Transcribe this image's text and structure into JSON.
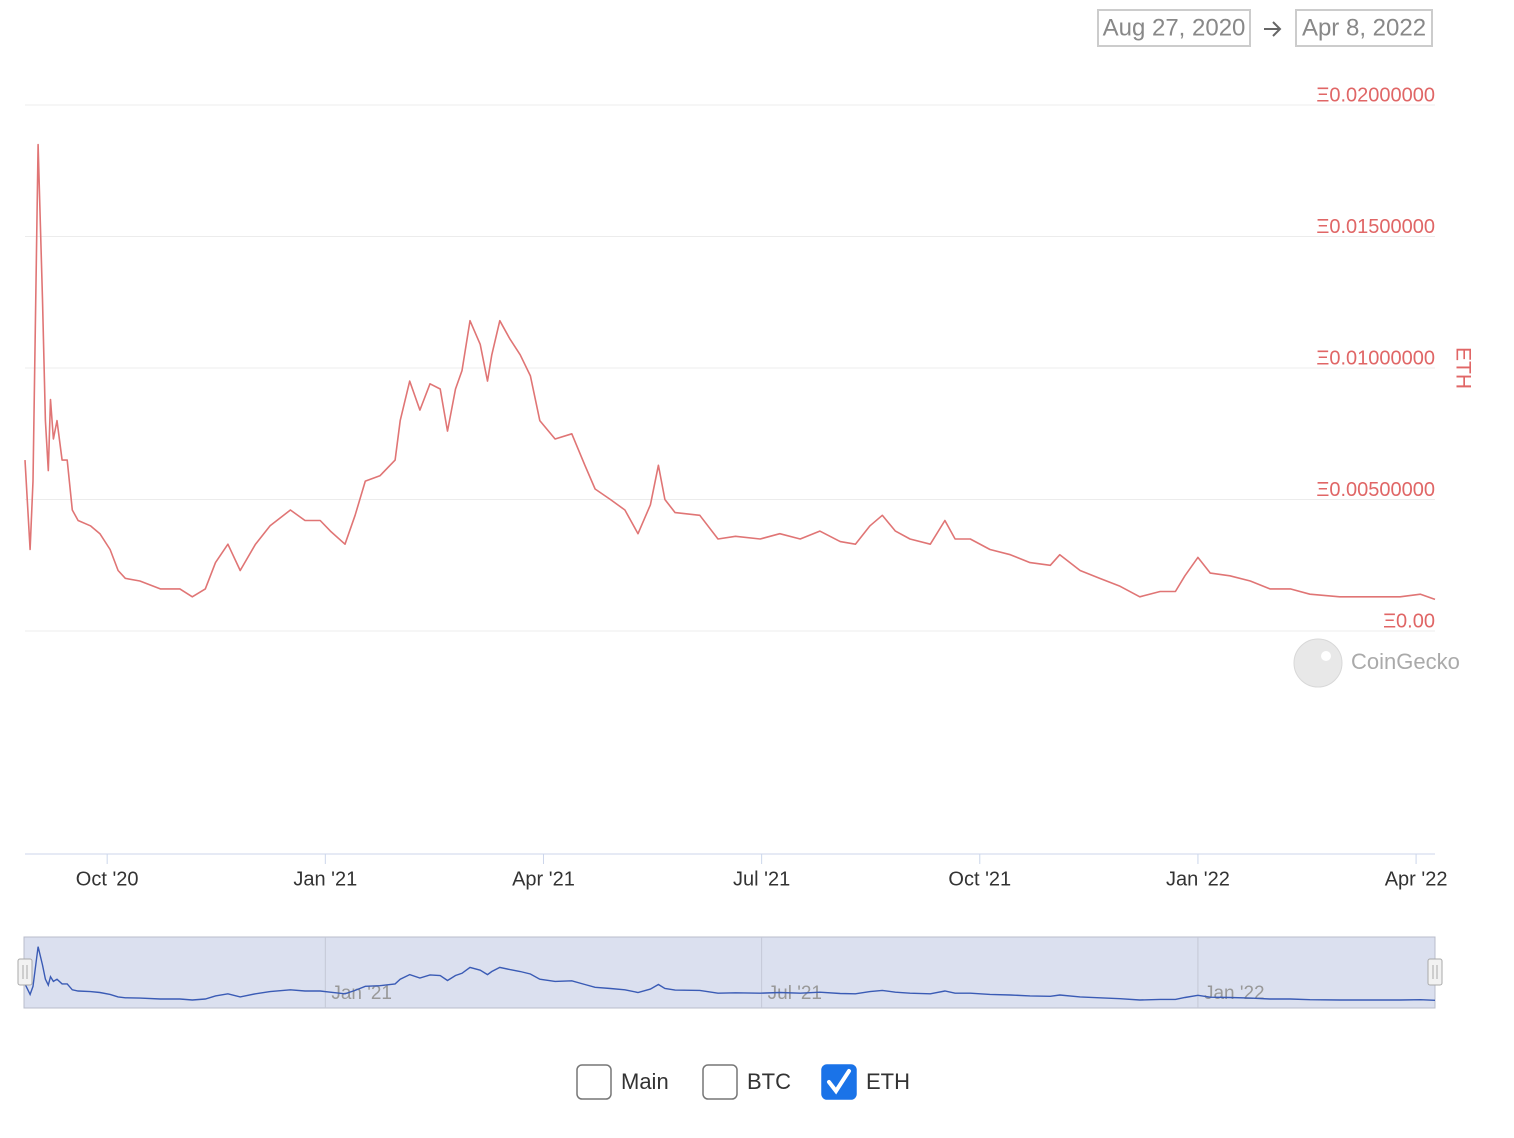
{
  "chart_data": {
    "type": "line",
    "date_range": {
      "start": "Aug 27, 2020",
      "end": "Apr 8, 2022"
    },
    "y_label": "ETH",
    "watermark": "CoinGecko",
    "x": [
      7.87,
      7.94,
      7.98,
      8.05,
      8.11,
      8.15,
      8.19,
      8.22,
      8.26,
      8.31,
      8.38,
      8.45,
      8.52,
      8.6,
      8.77,
      8.9,
      9.04,
      9.15,
      9.25,
      9.45,
      9.73,
      10.0,
      10.17,
      10.35,
      10.49,
      10.66,
      10.83,
      11.04,
      11.24,
      11.52,
      11.72,
      11.93,
      12.07,
      12.27,
      12.41,
      12.55,
      12.75,
      12.96,
      13.03,
      13.16,
      13.3,
      13.44,
      13.58,
      13.68,
      13.79,
      13.88,
      13.99,
      14.13,
      14.23,
      14.29,
      14.4,
      14.54,
      14.68,
      14.82,
      14.95,
      15.16,
      15.39,
      15.57,
      15.71,
      15.92,
      16.12,
      16.3,
      16.47,
      16.58,
      16.67,
      16.81,
      17.15,
      17.4,
      17.64,
      17.98,
      18.25,
      18.53,
      18.8,
      19.08,
      19.29,
      19.49,
      19.66,
      19.84,
      20.04,
      20.32,
      20.52,
      20.66,
      20.87,
      21.14,
      21.42,
      21.69,
      21.97,
      22.1,
      22.38,
      22.65,
      22.93,
      23.2,
      23.48,
      23.69,
      23.82,
      24.0,
      24.17,
      24.44,
      24.72,
      24.99,
      25.27,
      25.54,
      25.95,
      26.37,
      26.78,
      27.06,
      27.26
    ],
    "series": [
      {
        "color": "#e07575",
        "values": [
          0.0065,
          0.0031,
          0.0057,
          0.0185,
          0.0126,
          0.008,
          0.0061,
          0.0088,
          0.0073,
          0.008,
          0.0065,
          0.0065,
          0.0046,
          0.0042,
          0.004,
          0.0037,
          0.0031,
          0.0023,
          0.002,
          0.0019,
          0.0016,
          0.0016,
          0.0013,
          0.0016,
          0.0026,
          0.0033,
          0.0023,
          0.0033,
          0.004,
          0.0046,
          0.0042,
          0.0042,
          0.0038,
          0.0033,
          0.0044,
          0.0057,
          0.0059,
          0.0065,
          0.008,
          0.0095,
          0.0084,
          0.0094,
          0.0092,
          0.0076,
          0.0092,
          0.0099,
          0.0118,
          0.0109,
          0.0095,
          0.0105,
          0.0118,
          0.0111,
          0.0105,
          0.0097,
          0.008,
          0.0073,
          0.0075,
          0.0063,
          0.0054,
          0.005,
          0.0046,
          0.0037,
          0.0048,
          0.0063,
          0.005,
          0.0045,
          0.0044,
          0.0035,
          0.0036,
          0.0035,
          0.0037,
          0.0035,
          0.0038,
          0.0034,
          0.0033,
          0.004,
          0.0044,
          0.0038,
          0.0035,
          0.0033,
          0.0042,
          0.0035,
          0.0035,
          0.0031,
          0.0029,
          0.0026,
          0.0025,
          0.0029,
          0.0023,
          0.002,
          0.0017,
          0.0013,
          0.0015,
          0.0015,
          0.0021,
          0.0028,
          0.0022,
          0.0021,
          0.0019,
          0.0016,
          0.0016,
          0.0014,
          0.0013,
          0.0013,
          0.0013,
          0.0014,
          0.0012
        ]
      }
    ],
    "xlim": [
      7.87,
      27.26
    ],
    "xticks": [
      {
        "value": 9,
        "label": "Oct '20"
      },
      {
        "value": 12,
        "label": "Jan '21"
      },
      {
        "value": 15,
        "label": "Apr '21"
      },
      {
        "value": 18,
        "label": "Jul '21"
      },
      {
        "value": 21,
        "label": "Oct '21"
      },
      {
        "value": 24,
        "label": "Jan '22"
      },
      {
        "value": 27,
        "label": "Apr '22"
      }
    ],
    "ylim": [
      0,
      0.02
    ],
    "yticks": [
      {
        "value": 0,
        "label": "Ξ0.00"
      },
      {
        "value": 0.005,
        "label": "Ξ0.00500000"
      },
      {
        "value": 0.01,
        "label": "Ξ0.01000000"
      },
      {
        "value": 0.015,
        "label": "Ξ0.01500000"
      },
      {
        "value": 0.02,
        "label": "Ξ0.02000000"
      }
    ],
    "grid": true,
    "navigator": {
      "color": "#3a5bb5",
      "xticks": [
        1,
        3,
        5
      ]
    }
  },
  "toggles": [
    {
      "label": "Main",
      "checked": false
    },
    {
      "label": "BTC",
      "checked": false
    },
    {
      "label": "ETH",
      "checked": true
    }
  ]
}
